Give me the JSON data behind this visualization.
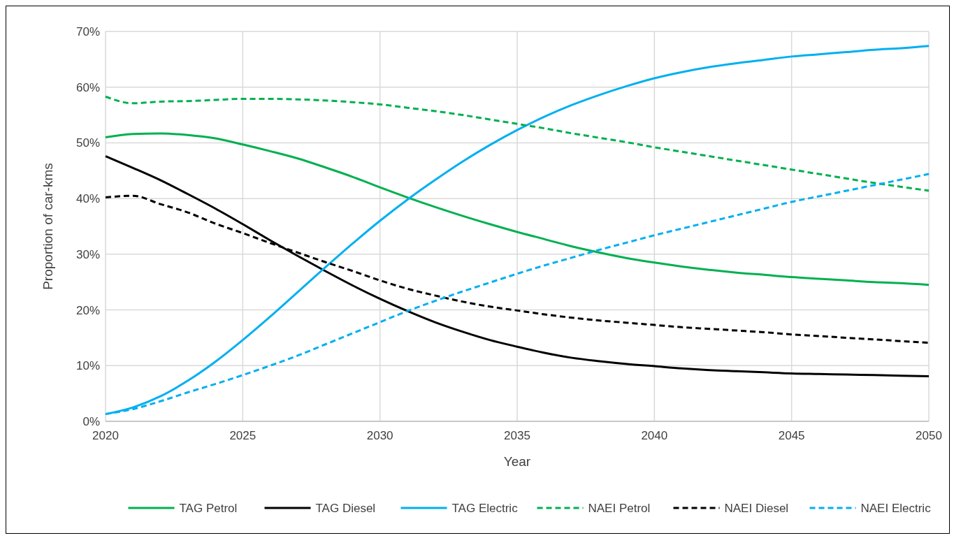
{
  "chart_data": {
    "type": "line",
    "xlabel": "Year",
    "ylabel": "Proportion of car-kms",
    "x": [
      2020,
      2021,
      2022,
      2023,
      2024,
      2025,
      2026,
      2027,
      2028,
      2029,
      2030,
      2031,
      2032,
      2033,
      2034,
      2035,
      2036,
      2037,
      2038,
      2039,
      2040,
      2041,
      2042,
      2043,
      2044,
      2045,
      2046,
      2047,
      2048,
      2049,
      2050
    ],
    "xlim": [
      2020,
      2050
    ],
    "xticks": [
      2020,
      2025,
      2030,
      2035,
      2040,
      2045,
      2050
    ],
    "ylim": [
      0,
      70
    ],
    "yticks": [
      {
        "value": 0,
        "label": "0%"
      },
      {
        "value": 10,
        "label": "10%"
      },
      {
        "value": 20,
        "label": "20%"
      },
      {
        "value": 30,
        "label": "30%"
      },
      {
        "value": 40,
        "label": "40%"
      },
      {
        "value": 50,
        "label": "50%"
      },
      {
        "value": 60,
        "label": "60%"
      },
      {
        "value": 70,
        "label": "70%"
      }
    ],
    "grid": true,
    "legend": "bottom",
    "marker": "none",
    "series": [
      {
        "name": "TAG Petrol",
        "color": "#00b050",
        "line_style": "solid",
        "values": [
          51,
          51.6,
          51.7,
          51.4,
          50.8,
          49.7,
          48.5,
          47.2,
          45.6,
          43.9,
          42,
          40.2,
          38.5,
          36.9,
          35.4,
          34,
          32.7,
          31.4,
          30.3,
          29.3,
          28.5,
          27.8,
          27.2,
          26.7,
          26.3,
          25.9,
          25.6,
          25.3,
          25,
          24.8,
          24.5
        ]
      },
      {
        "name": "TAG Diesel",
        "color": "#000000",
        "line_style": "solid",
        "values": [
          47.6,
          45.5,
          43.3,
          40.8,
          38.2,
          35.4,
          32.5,
          29.7,
          27,
          24.4,
          22,
          19.8,
          17.8,
          16.1,
          14.6,
          13.4,
          12.3,
          11.4,
          10.8,
          10.3,
          9.9,
          9.5,
          9.2,
          9,
          8.8,
          8.6,
          8.5,
          8.4,
          8.3,
          8.2,
          8.1
        ]
      },
      {
        "name": "TAG Electric",
        "color": "#00b0f0",
        "line_style": "solid",
        "values": [
          1.3,
          2.5,
          4.5,
          7.3,
          10.7,
          14.6,
          18.8,
          23.2,
          27.6,
          31.9,
          36,
          39.8,
          43.3,
          46.6,
          49.6,
          52.3,
          54.7,
          56.8,
          58.6,
          60.2,
          61.6,
          62.7,
          63.6,
          64.3,
          64.9,
          65.5,
          65.9,
          66.3,
          66.7,
          67,
          67.4
        ]
      },
      {
        "name": "NAEI Petrol",
        "color": "#00b050",
        "line_style": "dashed",
        "values": [
          58.3,
          57.1,
          57.4,
          57.5,
          57.7,
          57.9,
          57.9,
          57.8,
          57.6,
          57.3,
          56.9,
          56.3,
          55.7,
          55,
          54.2,
          53.4,
          52.6,
          51.7,
          50.9,
          50.1,
          49.2,
          48.4,
          47.6,
          46.8,
          46,
          45.2,
          44.4,
          43.6,
          42.8,
          42.1,
          41.4
        ]
      },
      {
        "name": "NAEI Diesel",
        "color": "#000000",
        "line_style": "dashed",
        "values": [
          40.2,
          40.5,
          39,
          37.5,
          35.5,
          33.8,
          32,
          30.3,
          28.6,
          27,
          25.3,
          23.8,
          22.6,
          21.5,
          20.6,
          19.9,
          19.2,
          18.6,
          18.1,
          17.7,
          17.3,
          16.9,
          16.6,
          16.3,
          16,
          15.6,
          15.3,
          15,
          14.7,
          14.4,
          14.1
        ]
      },
      {
        "name": "NAEI Electric",
        "color": "#00b0f0",
        "line_style": "dashed",
        "values": [
          1.3,
          2.2,
          3.6,
          5.2,
          6.7,
          8.3,
          10,
          11.8,
          13.8,
          15.8,
          17.8,
          19.8,
          21.6,
          23.3,
          24.9,
          26.5,
          28,
          29.4,
          30.8,
          32.1,
          33.4,
          34.6,
          35.8,
          37,
          38.2,
          39.4,
          40.4,
          41.4,
          42.4,
          43.4,
          44.4
        ]
      }
    ]
  }
}
